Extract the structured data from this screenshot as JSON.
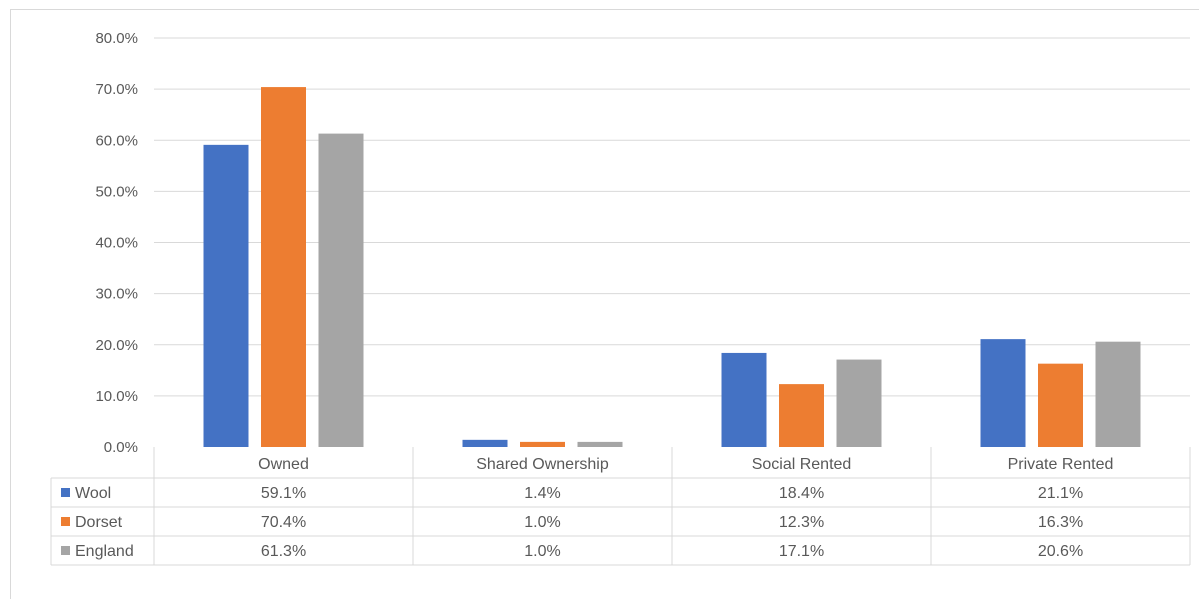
{
  "chart_data": {
    "type": "bar",
    "categories": [
      "Owned",
      "Shared Ownership",
      "Social Rented",
      "Private Rented"
    ],
    "series": [
      {
        "name": "Wool",
        "color": "#4472C4",
        "values": [
          59.1,
          1.4,
          18.4,
          21.1
        ],
        "labels": [
          "59.1%",
          "1.4%",
          "18.4%",
          "21.1%"
        ]
      },
      {
        "name": "Dorset",
        "color": "#ED7D31",
        "values": [
          70.4,
          1.0,
          12.3,
          16.3
        ],
        "labels": [
          "70.4%",
          "1.0%",
          "12.3%",
          "16.3%"
        ]
      },
      {
        "name": "England",
        "color": "#A5A5A5",
        "values": [
          61.3,
          1.0,
          17.1,
          20.6
        ],
        "labels": [
          "61.3%",
          "1.0%",
          "17.1%",
          "20.6%"
        ]
      }
    ],
    "y_ticks": [
      "0.0%",
      "10.0%",
      "20.0%",
      "30.0%",
      "40.0%",
      "50.0%",
      "60.0%",
      "70.0%",
      "80.0%"
    ],
    "ylim": [
      0,
      80
    ],
    "grid": true,
    "legend": "data-table-rows"
  }
}
